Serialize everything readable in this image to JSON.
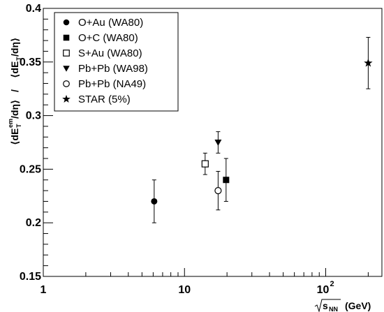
{
  "chart_data": {
    "type": "scatter",
    "xscale": "log",
    "xlim": [
      1,
      250
    ],
    "ylim": [
      0.15,
      0.4
    ],
    "grid": false,
    "legend_position": "top-left",
    "x_ticks": [
      {
        "value": 1,
        "label": "1"
      },
      {
        "value": 10,
        "label": "10"
      },
      {
        "value": 100,
        "label": "10",
        "exp": "2"
      }
    ],
    "y_ticks": [
      {
        "value": 0.15,
        "label": "0.15"
      },
      {
        "value": 0.2,
        "label": "0.2"
      },
      {
        "value": 0.25,
        "label": "0.25"
      },
      {
        "value": 0.3,
        "label": "0.3"
      },
      {
        "value": 0.35,
        "label": "0.35"
      },
      {
        "value": 0.4,
        "label": "0.4"
      }
    ],
    "xlabel": {
      "unit": "(GeV)",
      "var": "s",
      "sub": "NN"
    },
    "ylabel": {
      "num_open": "⟨dE",
      "num_sup": "em",
      "num_sub": "T",
      "num_close": "/dη⟩",
      "slash": " / ",
      "den_open": "⟨dE",
      "den_sub": "T",
      "den_close": "/dη⟩"
    },
    "series": [
      {
        "name": "O+Au (WA80)",
        "marker": "circle-filled",
        "x": 6.1,
        "y": 0.22,
        "yerr": [
          0.02,
          0.02
        ]
      },
      {
        "name": "O+C (WA80)",
        "marker": "square-filled",
        "x": 19.7,
        "y": 0.24,
        "yerr": [
          0.02,
          0.02
        ]
      },
      {
        "name": "S+Au (WA80)",
        "marker": "square-open",
        "x": 14.0,
        "y": 0.255,
        "yerr": [
          0.01,
          0.01
        ]
      },
      {
        "name": "Pb+Pb (WA98)",
        "marker": "triangle-down-filled",
        "x": 17.3,
        "y": 0.275,
        "yerr": [
          0.01,
          0.01
        ]
      },
      {
        "name": "Pb+Pb (NA49)",
        "marker": "circle-open",
        "x": 17.3,
        "y": 0.23,
        "yerr": [
          0.018,
          0.018
        ]
      },
      {
        "name": "STAR (5%)",
        "marker": "star-filled",
        "x": 200,
        "y": 0.349,
        "yerr": [
          0.024,
          0.024
        ]
      }
    ]
  }
}
